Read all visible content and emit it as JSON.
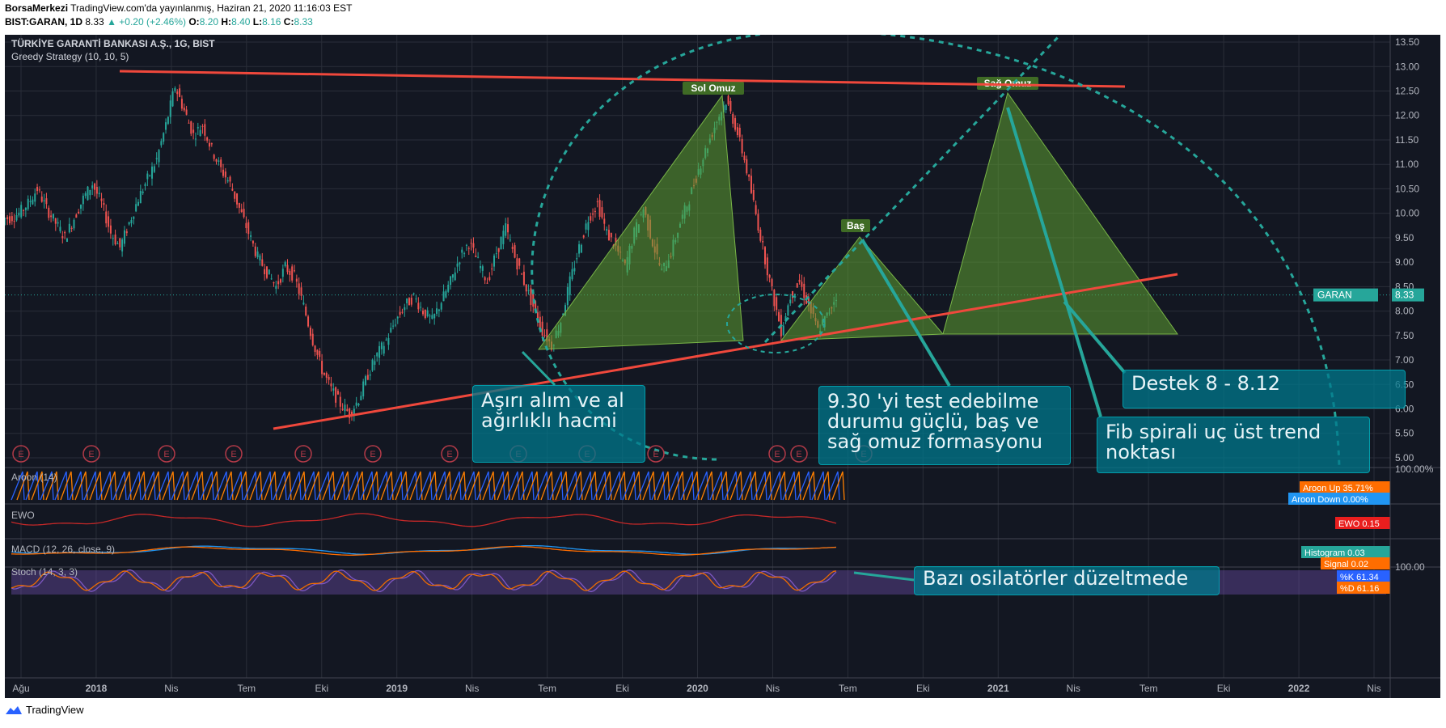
{
  "header": {
    "publisher": "BorsaMerkezi",
    "published_line": " TradingView.com'da yayınlanmış, Haziran 21, 2020 11:16:03 EST",
    "symbol": "BIST:GARAN, 1D",
    "last": "8.33",
    "change": "▲ +0.20 (+2.46%)",
    "o_label": "O:",
    "o": "8.20",
    "h_label": "H:",
    "h": "8.40",
    "l_label": "L:",
    "l": "8.16",
    "c_label": "C:",
    "c": "8.33"
  },
  "chart_title": "TÜRKİYE GARANTİ BANKASI A.Ş., 1G, BIST",
  "strategy": "Greedy Strategy (10, 10, 5)",
  "footer": {
    "brand": "TradingView"
  },
  "colors": {
    "bg": "#131722",
    "grid": "#2a2e39",
    "trend": "#f0483c",
    "pattern": "#4f8a2b",
    "fib": "#26a69a",
    "note": "#0a7c8c",
    "up": "#26a69a",
    "down": "#ef5350"
  },
  "chart_data": {
    "type": "candlestick",
    "y_ticks": [
      "13.50",
      "13.00",
      "12.50",
      "12.00",
      "11.50",
      "11.00",
      "10.50",
      "10.00",
      "9.50",
      "9.00",
      "8.50",
      "8.00",
      "7.50",
      "7.00",
      "6.50",
      "6.00",
      "5.50",
      "5.00"
    ],
    "x_ticks": [
      "Ağu",
      "2018",
      "Nis",
      "Tem",
      "Eki",
      "2019",
      "Nis",
      "Tem",
      "Eki",
      "2020",
      "Nis",
      "Tem",
      "Eki",
      "2021",
      "Nis",
      "Tem",
      "Eki",
      "2022",
      "Nis"
    ],
    "ylim": [
      4.9,
      13.6
    ],
    "price_label": "GARAN",
    "price_value": "8.33",
    "price_line": 8.33,
    "close_series": [
      9.9,
      10.0,
      10.2,
      10.5,
      10.1,
      9.8,
      9.5,
      9.9,
      10.3,
      10.6,
      10.2,
      9.6,
      9.3,
      9.8,
      10.3,
      10.7,
      11.1,
      11.8,
      12.6,
      12.1,
      11.6,
      11.8,
      11.3,
      10.9,
      10.6,
      10.1,
      9.6,
      9.1,
      8.8,
      8.5,
      8.9,
      8.7,
      8.1,
      7.4,
      6.8,
      6.4,
      6.1,
      5.9,
      6.2,
      6.7,
      7.1,
      7.4,
      7.8,
      8.1,
      8.3,
      8.0,
      7.8,
      8.2,
      8.6,
      9.1,
      9.4,
      9.0,
      8.6,
      9.2,
      9.7,
      9.1,
      8.6,
      8.1,
      7.6,
      7.3,
      7.8,
      8.6,
      9.3,
      9.9,
      10.2,
      9.6,
      9.3,
      8.9,
      9.6,
      10.1,
      9.4,
      8.8,
      9.2,
      9.8,
      10.3,
      10.9,
      11.4,
      11.9,
      12.3,
      11.8,
      11.1,
      10.2,
      9.3,
      8.4,
      7.6,
      8.3,
      8.6,
      8.1,
      7.6,
      7.9,
      8.33
    ],
    "events_count": 13,
    "annotations": {
      "left_shoulder": "Sol Omuz",
      "head": "Baş",
      "right_shoulder": "Sağ Omuz",
      "note1": "Aşırı alım ve al ağırlıklı hacmi",
      "note2": "9.30 'yi test edebilme durumu güçlü, baş ve sağ omuz formasyonu",
      "note3": "Destek 8 - 8.12",
      "note4": "Fib spirali uç üst trend noktası",
      "note5": "Bazı osilatörler düzeltmede"
    },
    "indicators": [
      {
        "name": "Aroon (14)",
        "axis": "100.00%",
        "up_label": "Aroon Up",
        "up_value": "35.71%",
        "down_label": "Aroon Down",
        "down_value": "0.00%"
      },
      {
        "name": "EWO",
        "label": "EWO",
        "value": "0.15"
      },
      {
        "name": "MACD (12, 26, close, 9)",
        "hist_label": "Histogram",
        "hist_value": "0.03",
        "signal_label": "Signal",
        "signal_value": "0.02"
      },
      {
        "name": "Stoch (14, 3, 3)",
        "axis": "100.00",
        "k_label": "%K",
        "k_value": "61.34",
        "d_label": "%D",
        "d_value": "61.16"
      }
    ]
  }
}
